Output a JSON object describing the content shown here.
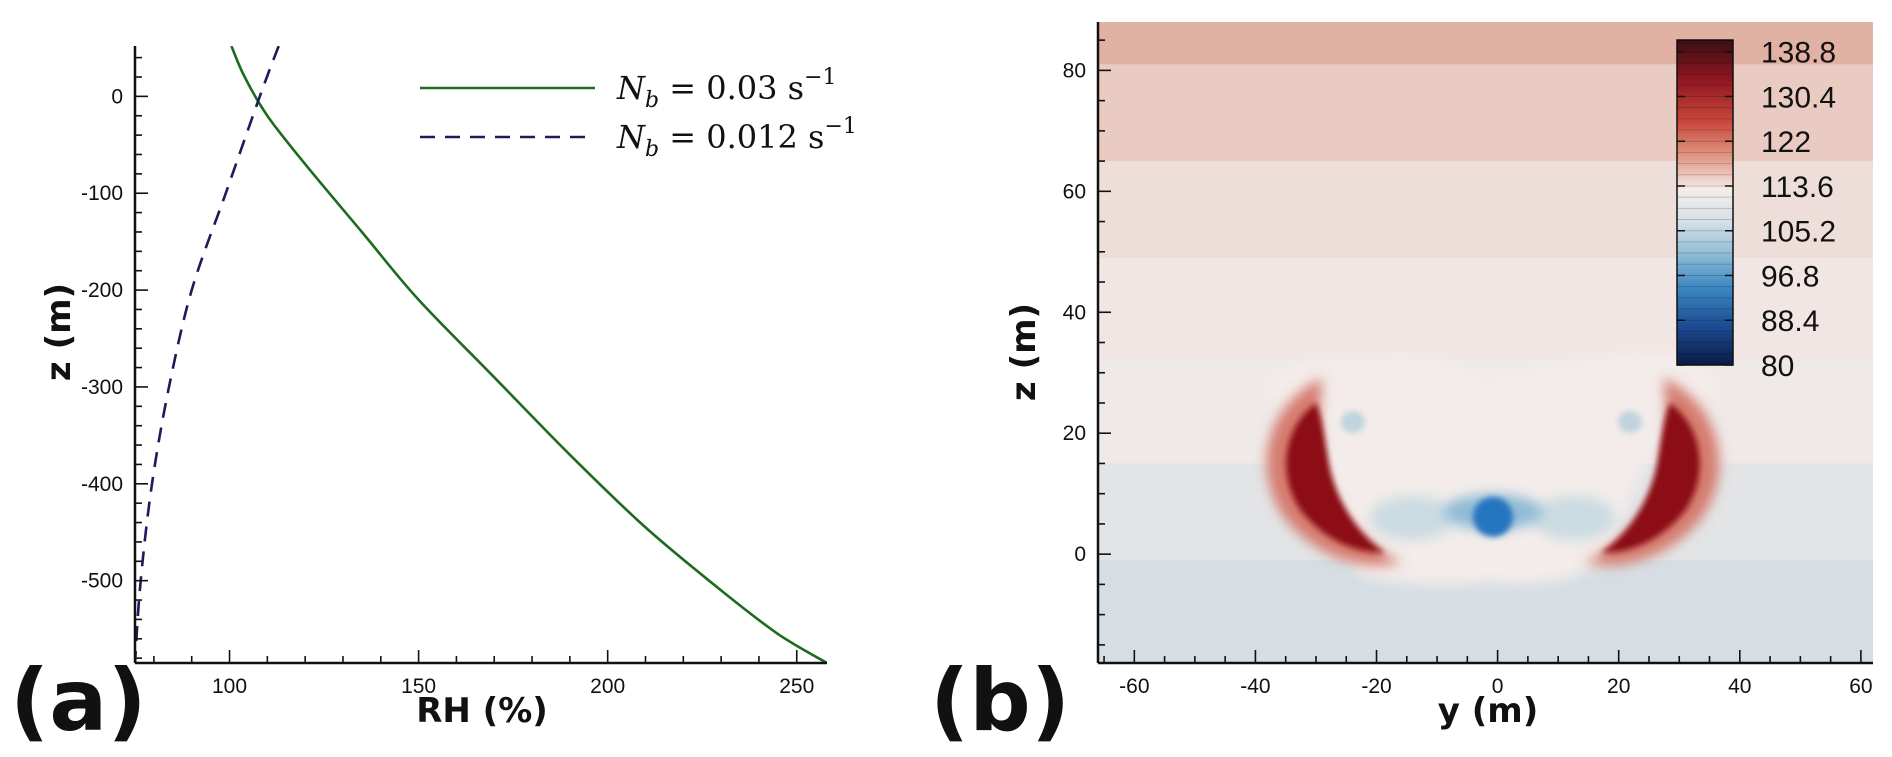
{
  "chart_data": [
    {
      "type": "line",
      "panel_label": "(a)",
      "xlabel": "RH (%)",
      "ylabel": "z (m)",
      "xlim": [
        75,
        258
      ],
      "ylim": [
        -585,
        52
      ],
      "x_ticks": [
        100,
        150,
        200,
        250
      ],
      "y_ticks": [
        0,
        -100,
        -200,
        -300,
        -400,
        -500
      ],
      "legend_position": "top-right",
      "series": [
        {
          "name": "N_b = 0.03 s^-1",
          "name_parts": {
            "base": "N",
            "sub": "b",
            "rest": " = 0.03 s",
            "sup": "−1"
          },
          "color": "#1e6b1e",
          "style": "solid",
          "points": [
            [
              100.5,
              52
            ],
            [
              104,
              20
            ],
            [
              110,
              -20
            ],
            [
              120,
              -70
            ],
            [
              135,
              -140
            ],
            [
              150,
              -210
            ],
            [
              170,
              -290
            ],
            [
              190,
              -370
            ],
            [
              210,
              -445
            ],
            [
              230,
              -510
            ],
            [
              245,
              -555
            ],
            [
              258,
              -585
            ]
          ]
        },
        {
          "name": "N_b = 0.012 s^-1",
          "name_parts": {
            "base": "N",
            "sub": "b",
            "rest": " = 0.012 s",
            "sup": "−1"
          },
          "color": "#1c1c5a",
          "style": "dashed",
          "points": [
            [
              113,
              52
            ],
            [
              108,
              0
            ],
            [
              99,
              -100
            ],
            [
              90,
              -200
            ],
            [
              84,
              -300
            ],
            [
              79.5,
              -400
            ],
            [
              76.5,
              -500
            ],
            [
              75,
              -585
            ]
          ]
        }
      ]
    },
    {
      "type": "heatmap",
      "panel_label": "(b)",
      "xlabel": "y (m)",
      "ylabel": "z (m)",
      "xlim": [
        -66,
        62
      ],
      "ylim": [
        -18,
        88
      ],
      "x_ticks": [
        -60,
        -40,
        -20,
        0,
        20,
        40,
        60
      ],
      "y_ticks": [
        0,
        20,
        40,
        60,
        80
      ],
      "grid": false,
      "colorbar": {
        "position": "top-right",
        "min": 80,
        "max": 141,
        "labels": [
          "138.8",
          "130.4",
          "122",
          "113.6",
          "105.2",
          "96.8",
          "88.4",
          "80"
        ]
      },
      "background_bands": [
        {
          "z_from": 81,
          "z_to": 88,
          "value": 124
        },
        {
          "z_from": 65,
          "z_to": 81,
          "value": 122
        },
        {
          "z_from": 49,
          "z_to": 65,
          "value": 118
        },
        {
          "z_from": 32,
          "z_to": 49,
          "value": 116
        },
        {
          "z_from": 15,
          "z_to": 32,
          "value": 114
        },
        {
          "z_from": -1,
          "z_to": 15,
          "value": 111
        },
        {
          "z_from": -18,
          "z_to": -1,
          "value": 109
        }
      ],
      "features": [
        {
          "kind": "vortex",
          "y": -31,
          "z": 10,
          "peak": 141
        },
        {
          "kind": "vortex",
          "y": 31,
          "z": 10,
          "peak": 141
        },
        {
          "kind": "updraft",
          "y": 0,
          "z": 6,
          "peak": 96
        }
      ]
    }
  ]
}
